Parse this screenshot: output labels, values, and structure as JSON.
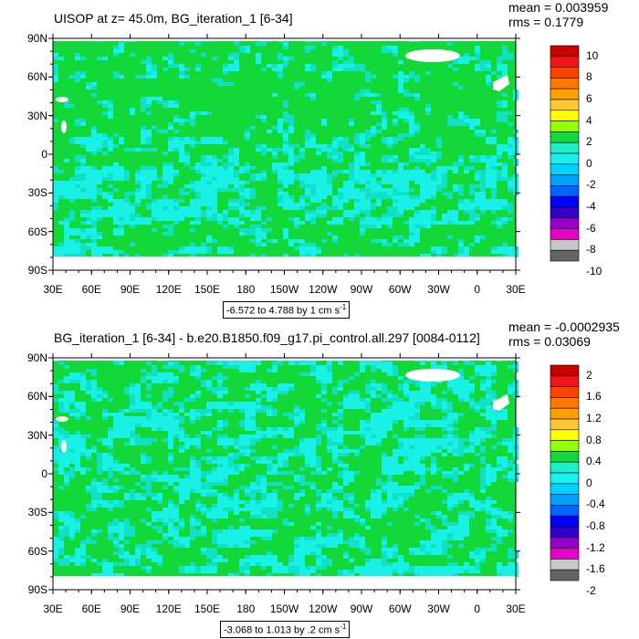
{
  "palette": {
    "land": "#12d83a",
    "ocean_speckle": "#10e0c4",
    "cyan": "#19f0e6",
    "ice": "#ffffff",
    "frame": "#000000",
    "background": "#ffffff"
  },
  "axes": {
    "lat_labels": [
      "90N",
      "60N",
      "30N",
      "0",
      "30S",
      "60S",
      "90S"
    ],
    "lon_labels": [
      "30E",
      "60E",
      "90E",
      "120E",
      "150E",
      "180",
      "150W",
      "120W",
      "90W",
      "60W",
      "30W",
      "0",
      "30E"
    ]
  },
  "panels": [
    {
      "title": "UISOP at z=  45.0m, BG_iteration_1 [6-34]",
      "mean": "mean = 0.003959",
      "rms": "rms = 0.1779",
      "range_text": "-6.572 to 4.788 by 1 cm s",
      "range_exp": "-1",
      "colorbar": {
        "labels": [
          "10",
          "8",
          "6",
          "4",
          "2",
          "0",
          "-2",
          "-4",
          "-6",
          "-8",
          "-10"
        ],
        "colors": [
          "#c80000",
          "#f01414",
          "#ff4000",
          "#ff7800",
          "#ffa000",
          "#ffc832",
          "#ffff00",
          "#96ff00",
          "#12d83a",
          "#19f0c8",
          "#19f0f0",
          "#00d2ff",
          "#00a0ff",
          "#0064ff",
          "#0000ff",
          "#3200c8",
          "#9600c8",
          "#e600c8",
          "#c8c8c8",
          "#646464"
        ]
      }
    },
    {
      "title": "BG_iteration_1 [6-34] - b.e20.B1850.f09_g17.pi_control.all.297 [0084-0112]",
      "mean": "mean = -0.0002935",
      "rms": "rms = 0.03069",
      "range_text": "-3.068 to 1.013 by .2 cm s",
      "range_exp": "-1",
      "colorbar": {
        "labels": [
          "2",
          "1.6",
          "1.2",
          "0.8",
          "0.4",
          "0",
          "-0.4",
          "-0.8",
          "-1.2",
          "-1.6",
          "-2"
        ],
        "colors": [
          "#c80000",
          "#f01414",
          "#ff4000",
          "#ff7800",
          "#ffa000",
          "#ffc832",
          "#ffff00",
          "#96ff00",
          "#12d83a",
          "#19f0c8",
          "#19f0f0",
          "#00d2ff",
          "#00a0ff",
          "#0064ff",
          "#0000ff",
          "#3200c8",
          "#9600c8",
          "#e600c8",
          "#c8c8c8",
          "#646464"
        ]
      }
    }
  ]
}
